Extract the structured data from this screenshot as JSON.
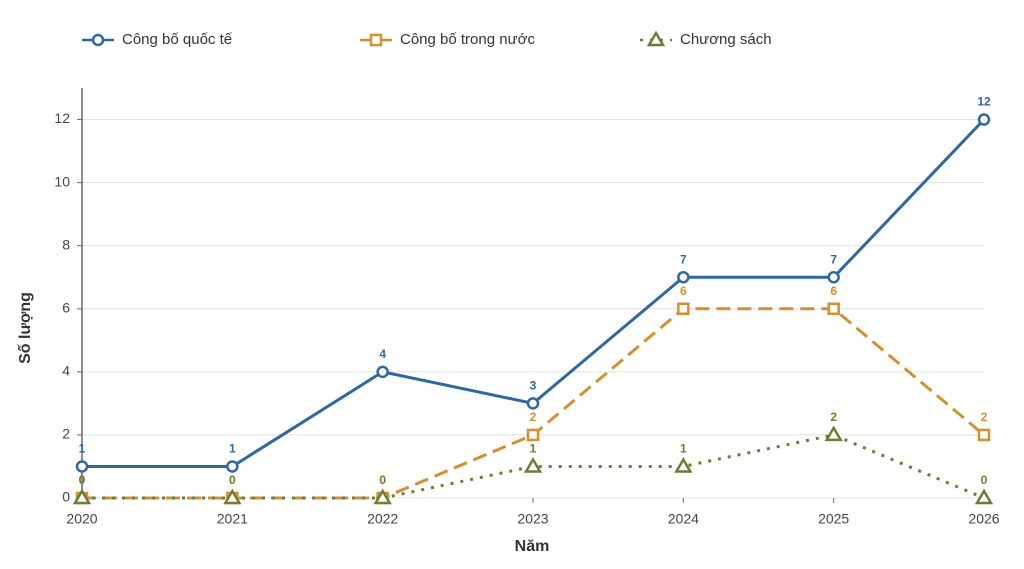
{
  "chart_data": {
    "type": "line",
    "x": [
      2020,
      2021,
      2022,
      2023,
      2024,
      2025,
      2026
    ],
    "series": [
      {
        "name": "Công bố quốc tế",
        "color": "#2e67a8",
        "values": [
          1,
          1,
          4,
          3,
          7,
          7,
          12
        ]
      },
      {
        "name": "Công bố trong nước",
        "color": "#d68f2a",
        "values": [
          0,
          0,
          0,
          2,
          6,
          6,
          2
        ]
      },
      {
        "name": "Chương sách",
        "color": "#6a7f35",
        "values": [
          0,
          0,
          0,
          1,
          1,
          2,
          0
        ]
      }
    ],
    "xlabel": "Năm",
    "ylabel": "Số lượng",
    "xlim": [
      2020,
      2026
    ],
    "xticks": [
      2020,
      2021,
      2022,
      2023,
      2024,
      2025,
      2026
    ],
    "ylim": [
      0,
      13
    ],
    "yticks": [
      0,
      2,
      4,
      6,
      8,
      10,
      12
    ],
    "grid": true,
    "legend": "top"
  }
}
